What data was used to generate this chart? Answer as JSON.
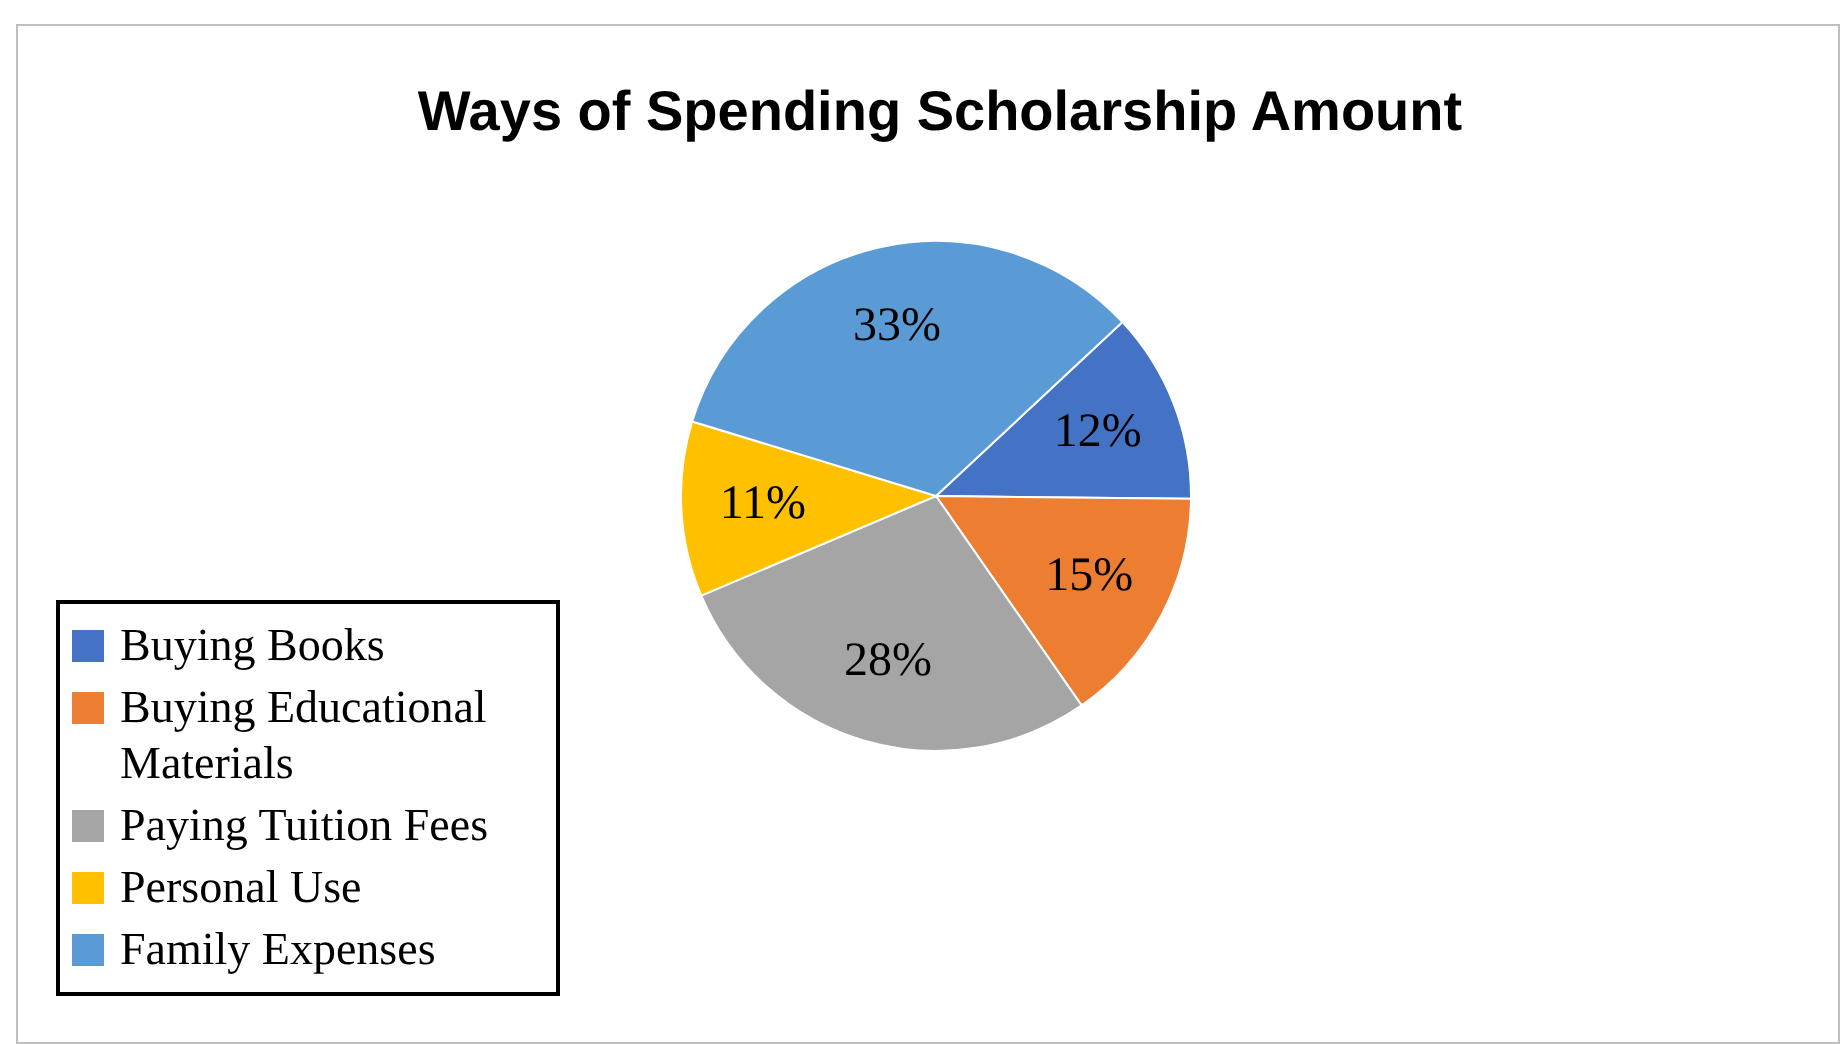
{
  "chart_data": {
    "type": "pie",
    "title": "Ways of Spending Scholarship Amount",
    "categories": [
      "Buying Books",
      "Buying Educational Materials",
      "Paying Tuition Fees",
      "Personal Use",
      "Family Expenses"
    ],
    "values": [
      12,
      15,
      28,
      11,
      33
    ],
    "value_labels": [
      "12%",
      "15%",
      "28%",
      "11%",
      "33%"
    ],
    "colors": [
      "#4472c4",
      "#ed7d31",
      "#a5a5a5",
      "#ffc000",
      "#5b9bd5"
    ],
    "legend": "left"
  }
}
